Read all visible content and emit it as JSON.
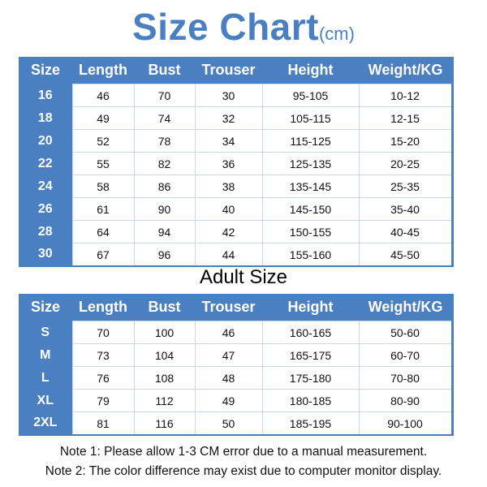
{
  "title": {
    "main": "Size Chart",
    "unit": "(cm)"
  },
  "headers": [
    "Size",
    "Length",
    "Bust",
    "Trouser",
    "Height",
    "Weight/KG"
  ],
  "kids_rows": [
    [
      "16",
      "46",
      "70",
      "30",
      "95-105",
      "10-12"
    ],
    [
      "18",
      "49",
      "74",
      "32",
      "105-115",
      "12-15"
    ],
    [
      "20",
      "52",
      "78",
      "34",
      "115-125",
      "15-20"
    ],
    [
      "22",
      "55",
      "82",
      "36",
      "125-135",
      "20-25"
    ],
    [
      "24",
      "58",
      "86",
      "38",
      "135-145",
      "25-35"
    ],
    [
      "26",
      "61",
      "90",
      "40",
      "145-150",
      "35-40"
    ],
    [
      "28",
      "64",
      "94",
      "42",
      "150-155",
      "40-45"
    ],
    [
      "30",
      "67",
      "96",
      "44",
      "155-160",
      "45-50"
    ]
  ],
  "adult_title": "Adult Size",
  "adult_rows": [
    [
      "S",
      "70",
      "100",
      "46",
      "160-165",
      "50-60"
    ],
    [
      "M",
      "73",
      "104",
      "47",
      "165-175",
      "60-70"
    ],
    [
      "L",
      "76",
      "108",
      "48",
      "175-180",
      "70-80"
    ],
    [
      "XL",
      "79",
      "112",
      "49",
      "180-185",
      "80-90"
    ],
    [
      "2XL",
      "81",
      "116",
      "50",
      "185-195",
      "90-100"
    ]
  ],
  "notes": [
    "Note 1: Please allow 1-3 CM error due to a manual measurement.",
    "Note 2: The color difference may exist due to computer monitor display."
  ],
  "colors": {
    "accent": "#4a7fc1"
  }
}
